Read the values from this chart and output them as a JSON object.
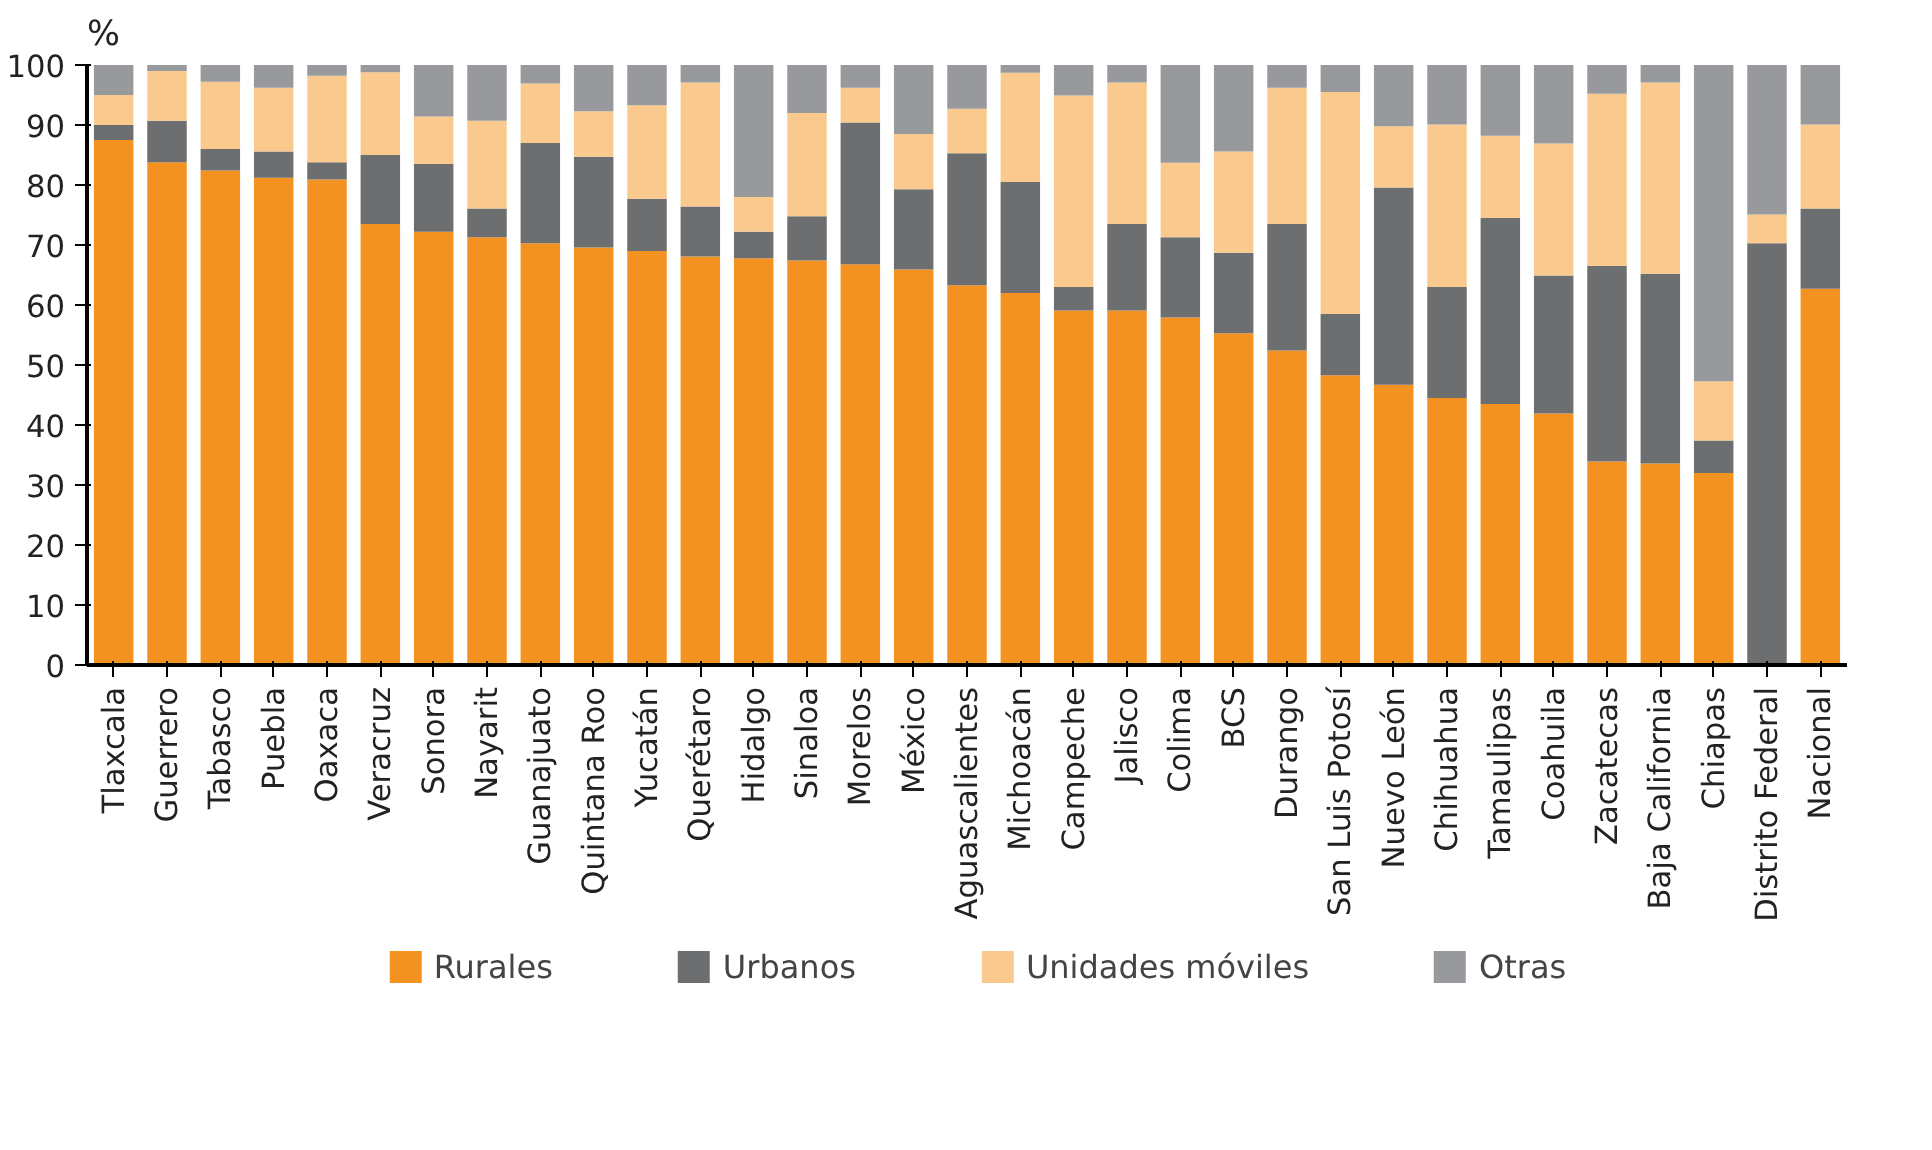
{
  "chart_data": {
    "type": "bar",
    "stacked": true,
    "ylabel": "%",
    "ylim": [
      0,
      100
    ],
    "yticks": [
      0,
      10,
      20,
      30,
      40,
      50,
      60,
      70,
      80,
      90,
      100
    ],
    "grid": false,
    "legend": "bottom",
    "categories": [
      "Tlaxcala",
      "Guerrero",
      "Tabasco",
      "Puebla",
      "Oaxaca",
      "Veracruz",
      "Sonora",
      "Nayarit",
      "Guanajuato",
      "Quintana Roo",
      "Yucatán",
      "Querétaro",
      "Hidalgo",
      "Sinaloa",
      "Morelos",
      "México",
      "Aguascalientes",
      "Michoacán",
      "Campeche",
      "Jalisco",
      "Colima",
      "BCS",
      "Durango",
      "San Luis Potosí",
      "Nuevo León",
      "Chihuahua",
      "Tamaulipas",
      "Coahuila",
      "Zacatecas",
      "Baja California",
      "Chiapas",
      "Distrito Federal",
      "Nacional"
    ],
    "series": [
      {
        "name": "Rurales",
        "color": "#f39220",
        "values": [
          87.5,
          83.8,
          82.4,
          81.2,
          80.9,
          73.5,
          72.2,
          71.3,
          70.3,
          69.6,
          69.0,
          68.1,
          67.8,
          67.4,
          66.8,
          65.9,
          63.3,
          62.0,
          59.1,
          59.1,
          57.9,
          55.3,
          52.4,
          48.3,
          46.7,
          44.5,
          43.5,
          41.9,
          33.9,
          33.6,
          32.0,
          0,
          62.7
        ]
      },
      {
        "name": "Urbanos",
        "color": "#6d6e70",
        "values": [
          2.5,
          6.9,
          3.6,
          4.4,
          2.9,
          11.5,
          11.3,
          4.8,
          16.7,
          15.1,
          8.7,
          8.3,
          4.4,
          7.4,
          23.6,
          13.4,
          22.0,
          18.5,
          3.9,
          14.4,
          13.4,
          13.4,
          21.1,
          10.2,
          32.9,
          18.5,
          31.0,
          23.0,
          32.6,
          31.6,
          5.4,
          70.3,
          13.4
        ]
      },
      {
        "name": "Unidades móviles",
        "color": "#f9c98e",
        "values": [
          5.0,
          8.3,
          11.2,
          10.6,
          14.4,
          13.8,
          7.9,
          14.6,
          9.9,
          7.6,
          15.6,
          20.7,
          5.8,
          17.2,
          5.8,
          9.2,
          7.4,
          18.2,
          31.9,
          23.6,
          12.4,
          16.9,
          22.7,
          37.0,
          10.2,
          27.1,
          13.7,
          22.0,
          28.7,
          31.9,
          9.9,
          4.8,
          14.0
        ]
      },
      {
        "name": "Otras",
        "color": "#98999c",
        "values": [
          5.0,
          1.0,
          2.8,
          3.8,
          1.8,
          1.2,
          8.6,
          9.3,
          3.1,
          7.7,
          6.7,
          2.9,
          22.0,
          8.0,
          3.8,
          11.5,
          7.3,
          1.3,
          5.1,
          2.9,
          16.3,
          14.4,
          3.8,
          4.5,
          10.2,
          9.9,
          11.8,
          13.1,
          4.8,
          2.9,
          52.7,
          24.9,
          9.9
        ]
      }
    ]
  }
}
